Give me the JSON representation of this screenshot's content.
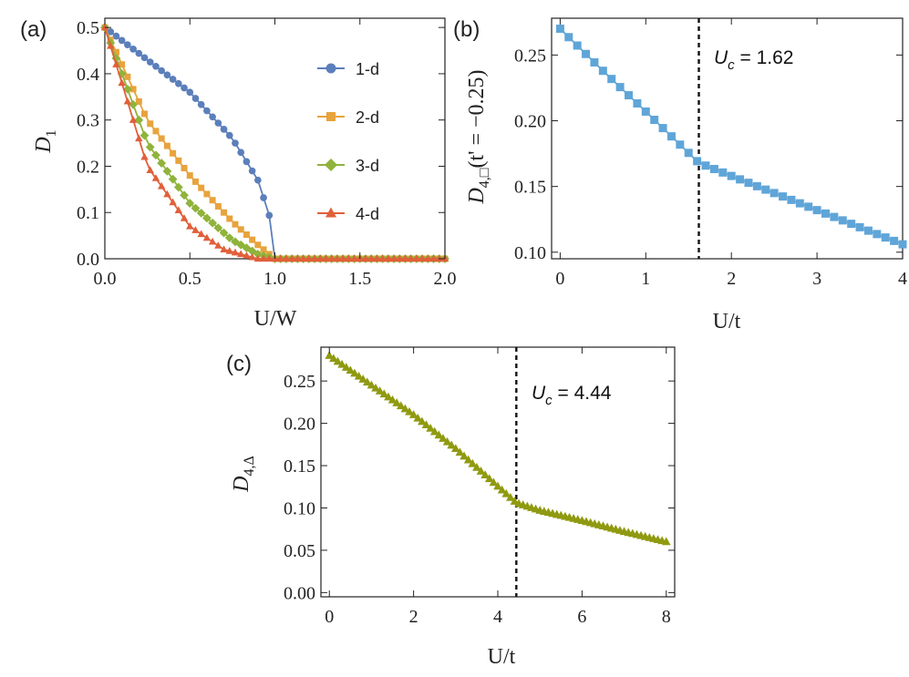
{
  "chart_data": [
    {
      "panel": "(a)",
      "type": "line",
      "xlabel": "U/W",
      "ylabel": "D1",
      "xlim": [
        0,
        2.0
      ],
      "ylim": [
        0,
        0.52
      ],
      "xticks": [
        "0.0",
        "0.5",
        "1.0",
        "1.5",
        "2.0"
      ],
      "xtick_values": [
        0,
        0.5,
        1.0,
        1.5,
        2.0
      ],
      "yticks": [
        "0.0",
        "0.1",
        "0.2",
        "0.3",
        "0.4",
        "0.5"
      ],
      "ytick_values": [
        0,
        0.1,
        0.2,
        0.3,
        0.4,
        0.5
      ],
      "legend_position": "right",
      "series": [
        {
          "name": "1-d",
          "color": "#5b7fba",
          "marker": "circle",
          "key_x": [
            0,
            0.25,
            0.5,
            0.75,
            0.9,
            0.97,
            1.0,
            2.0
          ],
          "key_y": [
            0.5,
            0.43,
            0.36,
            0.26,
            0.17,
            0.09,
            0.0,
            0.0
          ]
        },
        {
          "name": "2-d",
          "color": "#e8a33c",
          "marker": "square",
          "key_x": [
            0,
            0.25,
            0.5,
            0.75,
            0.9,
            1.0,
            2.0
          ],
          "key_y": [
            0.5,
            0.3,
            0.18,
            0.08,
            0.03,
            0.0,
            0.0
          ]
        },
        {
          "name": "3-d",
          "color": "#8fb33b",
          "marker": "diamond",
          "key_x": [
            0,
            0.25,
            0.5,
            0.75,
            0.9,
            1.0,
            2.0
          ],
          "key_y": [
            0.5,
            0.25,
            0.12,
            0.04,
            0.01,
            0.0,
            0.0
          ]
        },
        {
          "name": "4-d",
          "color": "#e0603a",
          "marker": "triangle",
          "key_x": [
            0,
            0.25,
            0.5,
            0.7,
            0.9,
            2.0
          ],
          "key_y": [
            0.5,
            0.2,
            0.07,
            0.02,
            0.0,
            0.0
          ]
        }
      ]
    },
    {
      "panel": "(b)",
      "type": "line",
      "xlabel": "U/t",
      "ylabel": "D4,□(t' = -0.25)",
      "xlim": [
        -0.1,
        4.0
      ],
      "ylim": [
        0.095,
        0.278
      ],
      "xticks": [
        "0",
        "1",
        "2",
        "3",
        "4"
      ],
      "xtick_values": [
        0,
        1,
        2,
        3,
        4
      ],
      "yticks": [
        "0.10",
        "0.15",
        "0.20",
        "0.25"
      ],
      "ytick_values": [
        0.1,
        0.15,
        0.2,
        0.25
      ],
      "critical_value": 1.62,
      "annotation": "= 1.62",
      "annotation_symbol": "U",
      "annotation_subscript": "c",
      "series": [
        {
          "name": "D4,square",
          "color": "#5fa5d8",
          "marker": "square",
          "key_x": [
            0,
            0.5,
            1.0,
            1.62,
            2.0,
            3.0,
            4.0
          ],
          "key_y": [
            0.27,
            0.238,
            0.207,
            0.168,
            0.158,
            0.132,
            0.106
          ]
        }
      ]
    },
    {
      "panel": "(c)",
      "type": "line",
      "xlabel": "U/t",
      "ylabel": "D4,Δ",
      "xlim": [
        -0.2,
        8.2
      ],
      "ylim": [
        -0.005,
        0.29
      ],
      "xticks": [
        "0",
        "2",
        "4",
        "6",
        "8"
      ],
      "xtick_values": [
        0,
        2,
        4,
        6,
        8
      ],
      "yticks": [
        "0.00",
        "0.05",
        "0.10",
        "0.15",
        "0.20",
        "0.25"
      ],
      "ytick_values": [
        0,
        0.05,
        0.1,
        0.15,
        0.2,
        0.25
      ],
      "critical_value": 4.44,
      "annotation": "= 4.44",
      "annotation_symbol": "U",
      "annotation_subscript": "c",
      "series": [
        {
          "name": "D4,triangle",
          "color": "#8f9a10",
          "marker": "triangle",
          "key_x": [
            0,
            1,
            2,
            3,
            4.44,
            5,
            6,
            7,
            8
          ],
          "key_y": [
            0.28,
            0.245,
            0.21,
            0.17,
            0.106,
            0.097,
            0.085,
            0.072,
            0.06
          ]
        }
      ]
    }
  ]
}
